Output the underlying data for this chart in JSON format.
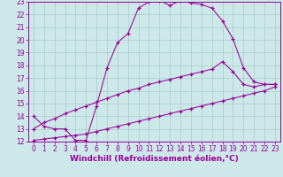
{
  "bg_color": "#cce8e8",
  "line_color": "#990099",
  "grid_color": "#aacccc",
  "xlabel": "Windchill (Refroidissement éolien,°C)",
  "xlabel_fontsize": 6.5,
  "tick_fontsize": 5.5,
  "xlim": [
    -0.5,
    23.5
  ],
  "ylim": [
    12,
    23
  ],
  "yticks": [
    12,
    13,
    14,
    15,
    16,
    17,
    18,
    19,
    20,
    21,
    22,
    23
  ],
  "xticks": [
    0,
    1,
    2,
    3,
    4,
    5,
    6,
    7,
    8,
    9,
    10,
    11,
    12,
    13,
    14,
    15,
    16,
    17,
    18,
    19,
    20,
    21,
    22,
    23
  ],
  "line1_x": [
    0,
    1,
    2,
    3,
    4,
    5,
    6,
    7,
    8,
    9,
    10,
    11,
    12,
    13,
    14,
    15,
    16,
    17,
    18,
    19,
    20,
    21,
    22,
    23
  ],
  "line1_y": [
    14.0,
    13.2,
    13.0,
    13.0,
    12.1,
    12.1,
    14.8,
    17.8,
    19.8,
    20.5,
    22.5,
    23.0,
    23.1,
    22.7,
    23.1,
    22.9,
    22.8,
    22.5,
    21.5,
    20.1,
    17.8,
    16.7,
    16.5,
    16.5
  ],
  "line2_x": [
    0,
    1,
    2,
    3,
    4,
    5,
    6,
    7,
    8,
    9,
    10,
    11,
    12,
    13,
    14,
    15,
    16,
    17,
    18,
    19,
    20,
    21,
    22,
    23
  ],
  "line2_y": [
    13.0,
    13.5,
    13.8,
    14.2,
    14.5,
    14.8,
    15.1,
    15.4,
    15.7,
    16.0,
    16.2,
    16.5,
    16.7,
    16.9,
    17.1,
    17.3,
    17.5,
    17.7,
    18.3,
    17.5,
    16.5,
    16.3,
    16.5,
    16.5
  ],
  "line3_x": [
    0,
    1,
    2,
    3,
    4,
    5,
    6,
    7,
    8,
    9,
    10,
    11,
    12,
    13,
    14,
    15,
    16,
    17,
    18,
    19,
    20,
    21,
    22,
    23
  ],
  "line3_y": [
    12.1,
    12.2,
    12.3,
    12.4,
    12.5,
    12.6,
    12.8,
    13.0,
    13.2,
    13.4,
    13.6,
    13.8,
    14.0,
    14.2,
    14.4,
    14.6,
    14.8,
    15.0,
    15.2,
    15.4,
    15.6,
    15.8,
    16.0,
    16.3
  ]
}
